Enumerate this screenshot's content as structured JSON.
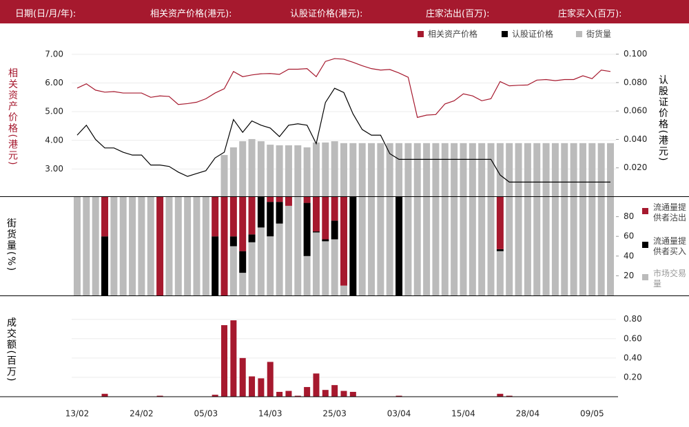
{
  "header": {
    "fields": [
      "日期(日/月/年):",
      "相关资产价格(港元):",
      "认股证价格(港元):",
      "庄家沽出(百万):",
      "庄家买入(百万):"
    ]
  },
  "chart_data": [
    {
      "type": "line",
      "y_label": "相关资产价格(港元)",
      "y2_label": "认股证价格(港元)",
      "ylim": [
        2.05,
        7.5
      ],
      "yticks": [
        {
          "value": 7,
          "label": "7.00"
        },
        {
          "value": 6,
          "label": "6.00"
        },
        {
          "value": 5,
          "label": "5.00"
        },
        {
          "value": 4,
          "label": "4.00"
        },
        {
          "value": 3,
          "label": "3.00"
        }
      ],
      "y2lim": [
        0,
        0.11
      ],
      "y2ticks": [
        {
          "value": 0.1,
          "label": "0.100"
        },
        {
          "value": 0.08,
          "label": "0.080"
        },
        {
          "value": 0.06,
          "label": "0.060"
        },
        {
          "value": 0.04,
          "label": "0.040"
        },
        {
          "value": 0.02,
          "label": "0.020"
        }
      ],
      "y3lim": [
        0,
        100
      ],
      "grid": true,
      "series": [
        {
          "name": "相关资产价格",
          "color": "#a6192e",
          "values": [
            5.82,
            5.97,
            5.75,
            5.68,
            5.7,
            5.65,
            5.65,
            5.65,
            5.5,
            5.55,
            5.53,
            5.25,
            5.28,
            5.33,
            5.45,
            5.65,
            5.8,
            6.4,
            6.22,
            6.28,
            6.32,
            6.33,
            6.3,
            6.48,
            6.48,
            6.5,
            6.22,
            6.75,
            6.85,
            6.83,
            6.72,
            6.6,
            6.5,
            6.45,
            6.47,
            6.35,
            6.2,
            4.8,
            4.88,
            4.9,
            5.27,
            5.38,
            5.62,
            5.55,
            5.38,
            5.45,
            6.05,
            5.9,
            5.92,
            5.93,
            6.1,
            6.12,
            6.08,
            6.12,
            6.12,
            6.25,
            6.15,
            6.45,
            6.4
          ]
        },
        {
          "name": "认股证价格",
          "color": "#000000",
          "axis": "y2",
          "values": [
            0.043,
            0.05,
            0.04,
            0.034,
            0.034,
            0.031,
            0.029,
            0.029,
            0.022,
            0.022,
            0.021,
            0.017,
            0.014,
            0.016,
            0.018,
            0.027,
            0.031,
            0.054,
            0.045,
            0.053,
            0.05,
            0.048,
            0.042,
            0.05,
            0.051,
            0.05,
            0.037,
            0.066,
            0.076,
            0.073,
            0.058,
            0.047,
            0.043,
            0.043,
            0.03,
            0.026,
            0.026,
            0.026,
            0.026,
            0.026,
            0.026,
            0.026,
            0.026,
            0.026,
            0.026,
            0.026,
            0.015,
            0.01,
            0.01,
            0.01,
            0.01,
            0.01,
            0.01,
            0.01,
            0.01,
            0.01,
            0.01,
            0.01,
            0.01
          ]
        },
        {
          "name": "街货量",
          "color": "#bbbbbb",
          "type": "bar",
          "axis": "y3",
          "values": [
            0,
            0,
            0,
            0,
            0,
            0,
            0,
            0,
            0,
            0,
            0,
            0,
            0,
            0,
            0,
            0,
            26.4,
            31.3,
            35.2,
            36.6,
            35.2,
            33,
            32.6,
            32.6,
            32.6,
            31.3,
            34.4,
            34.4,
            35.2,
            34,
            34,
            34,
            34,
            34,
            34,
            34,
            34,
            34,
            34,
            34,
            34,
            34,
            34,
            34,
            34,
            34,
            34,
            34,
            34,
            34,
            34,
            34,
            34,
            34,
            34,
            34,
            34,
            34,
            34
          ]
        }
      ]
    },
    {
      "type": "stacked_bar",
      "y_label": "街货量(%)",
      "ylim": [
        0,
        100
      ],
      "yticks": [
        80,
        60,
        40,
        20
      ],
      "series": [
        {
          "name": "流通量提供者沽出",
          "color": "#a6192e",
          "values": [
            0,
            0,
            0,
            40,
            0,
            0,
            0,
            0,
            0,
            100,
            0,
            0,
            0,
            0,
            0,
            40,
            100,
            40,
            55,
            38,
            0,
            5,
            5,
            9,
            0,
            6,
            35,
            43,
            24,
            90,
            0,
            0,
            0,
            0,
            0,
            0,
            0,
            0,
            0,
            0,
            0,
            0,
            0,
            0,
            0,
            0,
            53,
            0,
            0,
            0,
            0,
            0,
            0,
            0,
            0,
            0,
            0,
            0,
            0
          ]
        },
        {
          "name": "流通量提供者买入",
          "color": "#000000",
          "values": [
            0,
            0,
            0,
            60,
            0,
            0,
            0,
            0,
            0,
            0,
            0,
            0,
            0,
            0,
            0,
            60,
            0,
            10,
            22,
            8,
            31,
            35,
            22,
            0,
            0,
            54,
            1,
            2,
            19,
            0,
            100,
            0,
            0,
            0,
            0,
            100,
            0,
            0,
            0,
            0,
            0,
            0,
            0,
            0,
            0,
            0,
            2,
            0,
            0,
            0,
            0,
            0,
            0,
            0,
            0,
            0,
            0,
            0,
            0
          ]
        },
        {
          "name": "市场交易量",
          "color": "#bbbbbb",
          "values": [
            100,
            100,
            100,
            0,
            100,
            100,
            100,
            100,
            100,
            0,
            100,
            100,
            100,
            100,
            100,
            0,
            0,
            50,
            23,
            54,
            69,
            60,
            73,
            91,
            100,
            40,
            64,
            55,
            57,
            10,
            0,
            100,
            100,
            100,
            100,
            0,
            100,
            100,
            100,
            100,
            100,
            100,
            100,
            100,
            100,
            100,
            45,
            100,
            100,
            100,
            100,
            100,
            100,
            100,
            100,
            100,
            100,
            100,
            100
          ]
        }
      ]
    },
    {
      "type": "bar",
      "y_label": "成交额(百万)",
      "color": "#a6192e",
      "ylim": [
        0,
        1.04
      ],
      "grid": true,
      "yticks": [
        {
          "value": 0.8,
          "label": "0.80"
        },
        {
          "value": 0.6,
          "label": "0.60"
        },
        {
          "value": 0.4,
          "label": "0.40"
        },
        {
          "value": 0.2,
          "label": "0.20"
        }
      ],
      "categories": [
        "13/02",
        null,
        null,
        null,
        null,
        null,
        null,
        "24/02",
        null,
        null,
        null,
        null,
        null,
        null,
        "05/03",
        null,
        null,
        null,
        null,
        null,
        null,
        "14/03",
        null,
        null,
        null,
        null,
        null,
        null,
        "25/03",
        null,
        null,
        null,
        null,
        null,
        null,
        "03/04",
        null,
        null,
        null,
        null,
        null,
        null,
        "15/04",
        null,
        null,
        null,
        null,
        null,
        null,
        "28/04",
        null,
        null,
        null,
        null,
        null,
        null,
        "09/05",
        null,
        null
      ],
      "values": [
        0,
        0,
        0,
        0.03,
        0,
        0,
        0,
        0,
        0,
        0.01,
        0,
        0,
        0,
        0,
        0,
        0.02,
        0.74,
        0.79,
        0.4,
        0.21,
        0.19,
        0.36,
        0.05,
        0.06,
        0.01,
        0.1,
        0.24,
        0.07,
        0.12,
        0.06,
        0.05,
        0,
        0,
        0,
        0,
        0.01,
        0,
        0,
        0,
        0,
        0,
        0,
        0,
        0,
        0,
        0,
        0.03,
        0.01,
        0,
        0,
        0,
        0,
        0,
        0,
        0,
        0,
        0,
        0,
        0
      ]
    }
  ]
}
